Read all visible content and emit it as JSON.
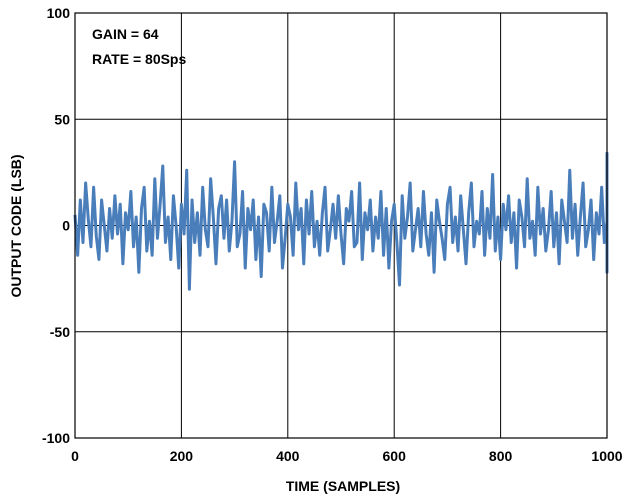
{
  "chart_data": {
    "type": "line",
    "title": "",
    "xlabel": "TIME (SAMPLES)",
    "ylabel": "OUTPUT CODE (LSB)",
    "xlim": [
      0,
      1000
    ],
    "ylim": [
      -100,
      100
    ],
    "xticks": [
      "0",
      "200",
      "400",
      "600",
      "800",
      "1000"
    ],
    "yticks": [
      "100",
      "50",
      "0",
      "-50",
      "-100"
    ],
    "grid": true,
    "annotations": [
      "GAIN = 64",
      "RATE = 80Sps"
    ],
    "series_color": "#4A7EBB",
    "series": [
      {
        "x_step": 5,
        "x_start": 0,
        "values": [
          5,
          -14,
          12,
          -8,
          20,
          3,
          -10,
          18,
          -5,
          -16,
          12,
          0,
          -12,
          8,
          -6,
          14,
          -4,
          10,
          -18,
          6,
          -2,
          16,
          -10,
          4,
          -22,
          8,
          18,
          -12,
          2,
          -14,
          22,
          -6,
          10,
          28,
          -8,
          4,
          -16,
          14,
          0,
          -20,
          10,
          -4,
          26,
          -30,
          12,
          -8,
          6,
          -14,
          18,
          -2,
          -10,
          22,
          4,
          -18,
          8,
          14,
          -6,
          12,
          -12,
          2,
          30,
          -10,
          -4,
          16,
          -20,
          8,
          -2,
          12,
          -16,
          4,
          -24,
          10,
          6,
          -12,
          18,
          -8,
          2,
          14,
          -20,
          -6,
          10,
          4,
          -14,
          20,
          -2,
          8,
          -18,
          12,
          -4,
          16,
          -10,
          2,
          -14,
          6,
          18,
          -12,
          -2,
          10,
          -6,
          14,
          -4,
          -18,
          8,
          2,
          16,
          -10,
          -8,
          20,
          -16,
          6,
          -2,
          12,
          -12,
          4,
          -6,
          16,
          -14,
          8,
          -20,
          2,
          10,
          -8,
          -28,
          14,
          -6,
          4,
          20,
          -12,
          -2,
          8,
          -10,
          16,
          -4,
          -14,
          6,
          -22,
          12,
          2,
          -6,
          -16,
          10,
          18,
          -8,
          4,
          -12,
          14,
          -2,
          -18,
          6,
          20,
          -10,
          2,
          -4,
          16,
          -14,
          8,
          -6,
          24,
          -12,
          4,
          -16,
          10,
          -2,
          14,
          -8,
          6,
          -20,
          12,
          4,
          -10,
          22,
          -6,
          2,
          -14,
          18,
          -4,
          8,
          -12,
          -2,
          16,
          -10,
          6,
          -18,
          12,
          2,
          -8,
          26,
          -6,
          10,
          -14,
          4,
          20,
          -10,
          -2,
          12,
          -16,
          6,
          -4,
          18,
          -8,
          2,
          -12,
          10,
          28,
          -14,
          -2,
          16,
          -8,
          4,
          -20,
          12,
          -6,
          8,
          -10,
          14,
          -18,
          2,
          6,
          -12,
          16,
          -4,
          -22,
          10,
          -2,
          18,
          -8,
          4,
          -14,
          12,
          -6,
          20,
          -10,
          2,
          -16,
          8,
          24,
          -4,
          -12,
          6,
          14,
          -8,
          -18,
          10,
          -2,
          16,
          -12,
          4,
          -6,
          12,
          -14,
          8,
          -4,
          18,
          -10,
          2,
          -20,
          10,
          6,
          -8,
          14,
          -4,
          -16,
          12,
          2,
          -10,
          20,
          -6,
          8,
          -14,
          4,
          -18,
          16,
          -2,
          10,
          -12,
          6,
          -8,
          22,
          -4,
          -14,
          12,
          2,
          -10,
          16,
          -6,
          8,
          -18,
          4,
          14,
          -2,
          -12,
          10,
          -8,
          20,
          -4,
          6,
          -16,
          12,
          2,
          -10,
          18,
          -6,
          4,
          -14,
          10,
          -2,
          24,
          -12,
          8,
          -4,
          16,
          -18,
          2,
          10,
          -8,
          14,
          -6,
          -12,
          4,
          20,
          -2,
          -16,
          8,
          12,
          -10,
          6,
          -4,
          -22,
          14,
          2,
          -8,
          18,
          -6,
          10,
          -14,
          4,
          -2,
          16,
          -12,
          8,
          -20,
          6,
          12,
          -4,
          -10,
          18,
          -8,
          2,
          14,
          -16,
          6,
          -4,
          20,
          -12,
          10,
          -2,
          -18,
          8,
          4,
          -14,
          16,
          -6,
          12,
          -10,
          2,
          22,
          -8,
          -4,
          14,
          -12,
          6,
          10,
          -16,
          2,
          -6,
          18,
          -10,
          8,
          -14,
          4,
          12,
          -2,
          -20,
          16,
          -8,
          6,
          -12,
          10,
          30,
          -4,
          -14,
          8,
          2,
          -18,
          12,
          -6,
          16,
          -10,
          4,
          -2,
          20,
          -14,
          8,
          -8,
          12,
          -4,
          -16,
          6,
          18,
          -12,
          2,
          10,
          -6,
          14,
          -20,
          8,
          -2,
          24,
          -10,
          4,
          -14,
          12,
          -8,
          16,
          -4,
          6,
          -18,
          10,
          2,
          -12,
          20,
          -6,
          14,
          -2,
          -16,
          8,
          4,
          -10,
          18,
          -14,
          6,
          -8,
          12,
          -4,
          22,
          -12,
          2,
          10,
          -18,
          8,
          -6,
          16,
          -2,
          4,
          -14,
          12,
          -10,
          20,
          -8,
          6,
          -4,
          14,
          -16,
          2,
          10,
          -12,
          18,
          -6,
          8,
          -20,
          4,
          12,
          -2,
          -10,
          16,
          -14,
          6,
          -8,
          22,
          -4,
          10,
          -12,
          2,
          26,
          -6,
          -16,
          8,
          14,
          -10,
          4,
          -2,
          -18,
          12,
          6,
          -8,
          20,
          -12,
          2,
          16,
          -6,
          10,
          -14,
          4,
          -4,
          34,
          -8,
          12,
          -16,
          6,
          -10,
          30,
          -2,
          8,
          -12,
          18,
          -6,
          14,
          -20,
          4,
          10,
          -8,
          22,
          -4,
          -14,
          12,
          2,
          -10,
          34,
          -6,
          8,
          -16,
          4,
          16,
          -12,
          6,
          -2,
          26,
          -8,
          -18,
          10,
          14,
          -4,
          -12,
          20,
          -6,
          2,
          -14,
          12,
          30,
          -10,
          8,
          -4,
          -16,
          18,
          -8,
          6,
          -2,
          24,
          -12,
          4,
          10,
          -6,
          -18,
          16,
          -10,
          2,
          12,
          -4,
          28,
          -14,
          8,
          -8,
          20,
          -2,
          -16,
          10,
          4,
          -12,
          18,
          -6,
          14,
          -2,
          -10,
          8,
          30,
          -16,
          -2
        ]
      }
    ]
  }
}
